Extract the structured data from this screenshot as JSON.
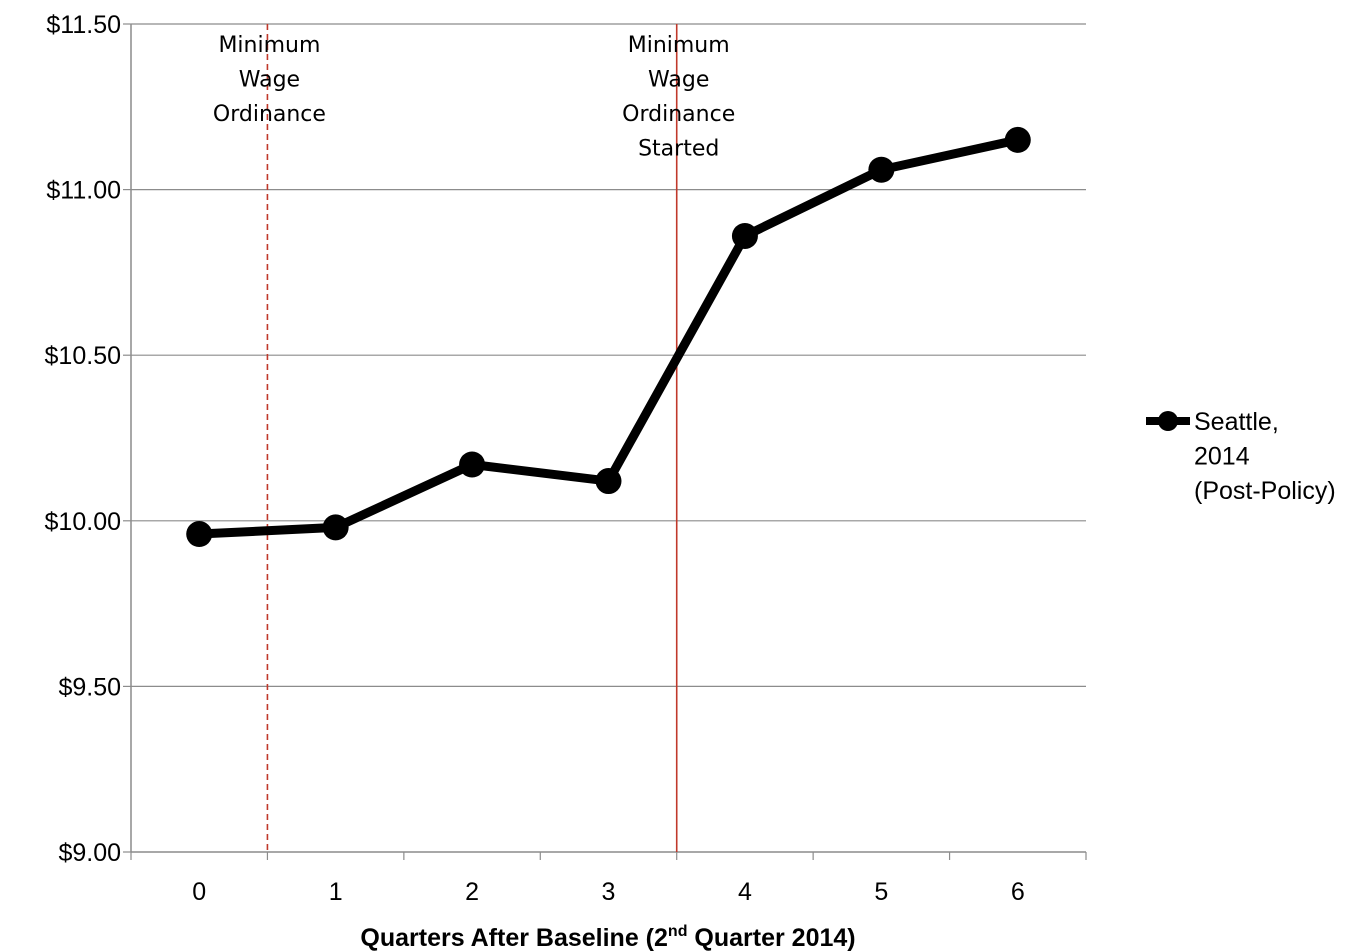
{
  "chart_data": {
    "type": "line",
    "x": [
      0,
      1,
      2,
      3,
      4,
      5,
      6
    ],
    "x_tick_labels": [
      "0",
      "1",
      "2",
      "3",
      "4",
      "5",
      "6"
    ],
    "series": [
      {
        "name": "Seattle, 2014 (Post-Policy)",
        "name_lines": [
          "Seattle,",
          "2014",
          "(Post-Policy)"
        ],
        "values": [
          9.96,
          9.98,
          10.17,
          10.12,
          10.86,
          11.06,
          11.15
        ],
        "color": "#000000"
      }
    ],
    "y_tick_labels": [
      "$9.00",
      "$9.50",
      "$10.00",
      "$10.50",
      "$11.00",
      "$11.50"
    ],
    "y_ticks": [
      9.0,
      9.5,
      10.0,
      10.5,
      11.0,
      11.5
    ],
    "ylim": [
      9.0,
      11.5
    ],
    "xlabel": {
      "prefix": "Quarters After Baseline (2",
      "superscript": "nd",
      "suffix": " Quarter 2014)"
    },
    "ylabel": "",
    "grid": true,
    "legend_position": "right",
    "annotations": [
      {
        "x": 0.5,
        "style": "dashed",
        "color": "#c0392b",
        "lines": [
          "Minimum",
          "Wage",
          "Ordinance"
        ]
      },
      {
        "x": 3.5,
        "style": "solid",
        "color": "#c0392b",
        "lines": [
          "Minimum",
          "Wage",
          "Ordinance",
          "Started"
        ]
      }
    ]
  }
}
